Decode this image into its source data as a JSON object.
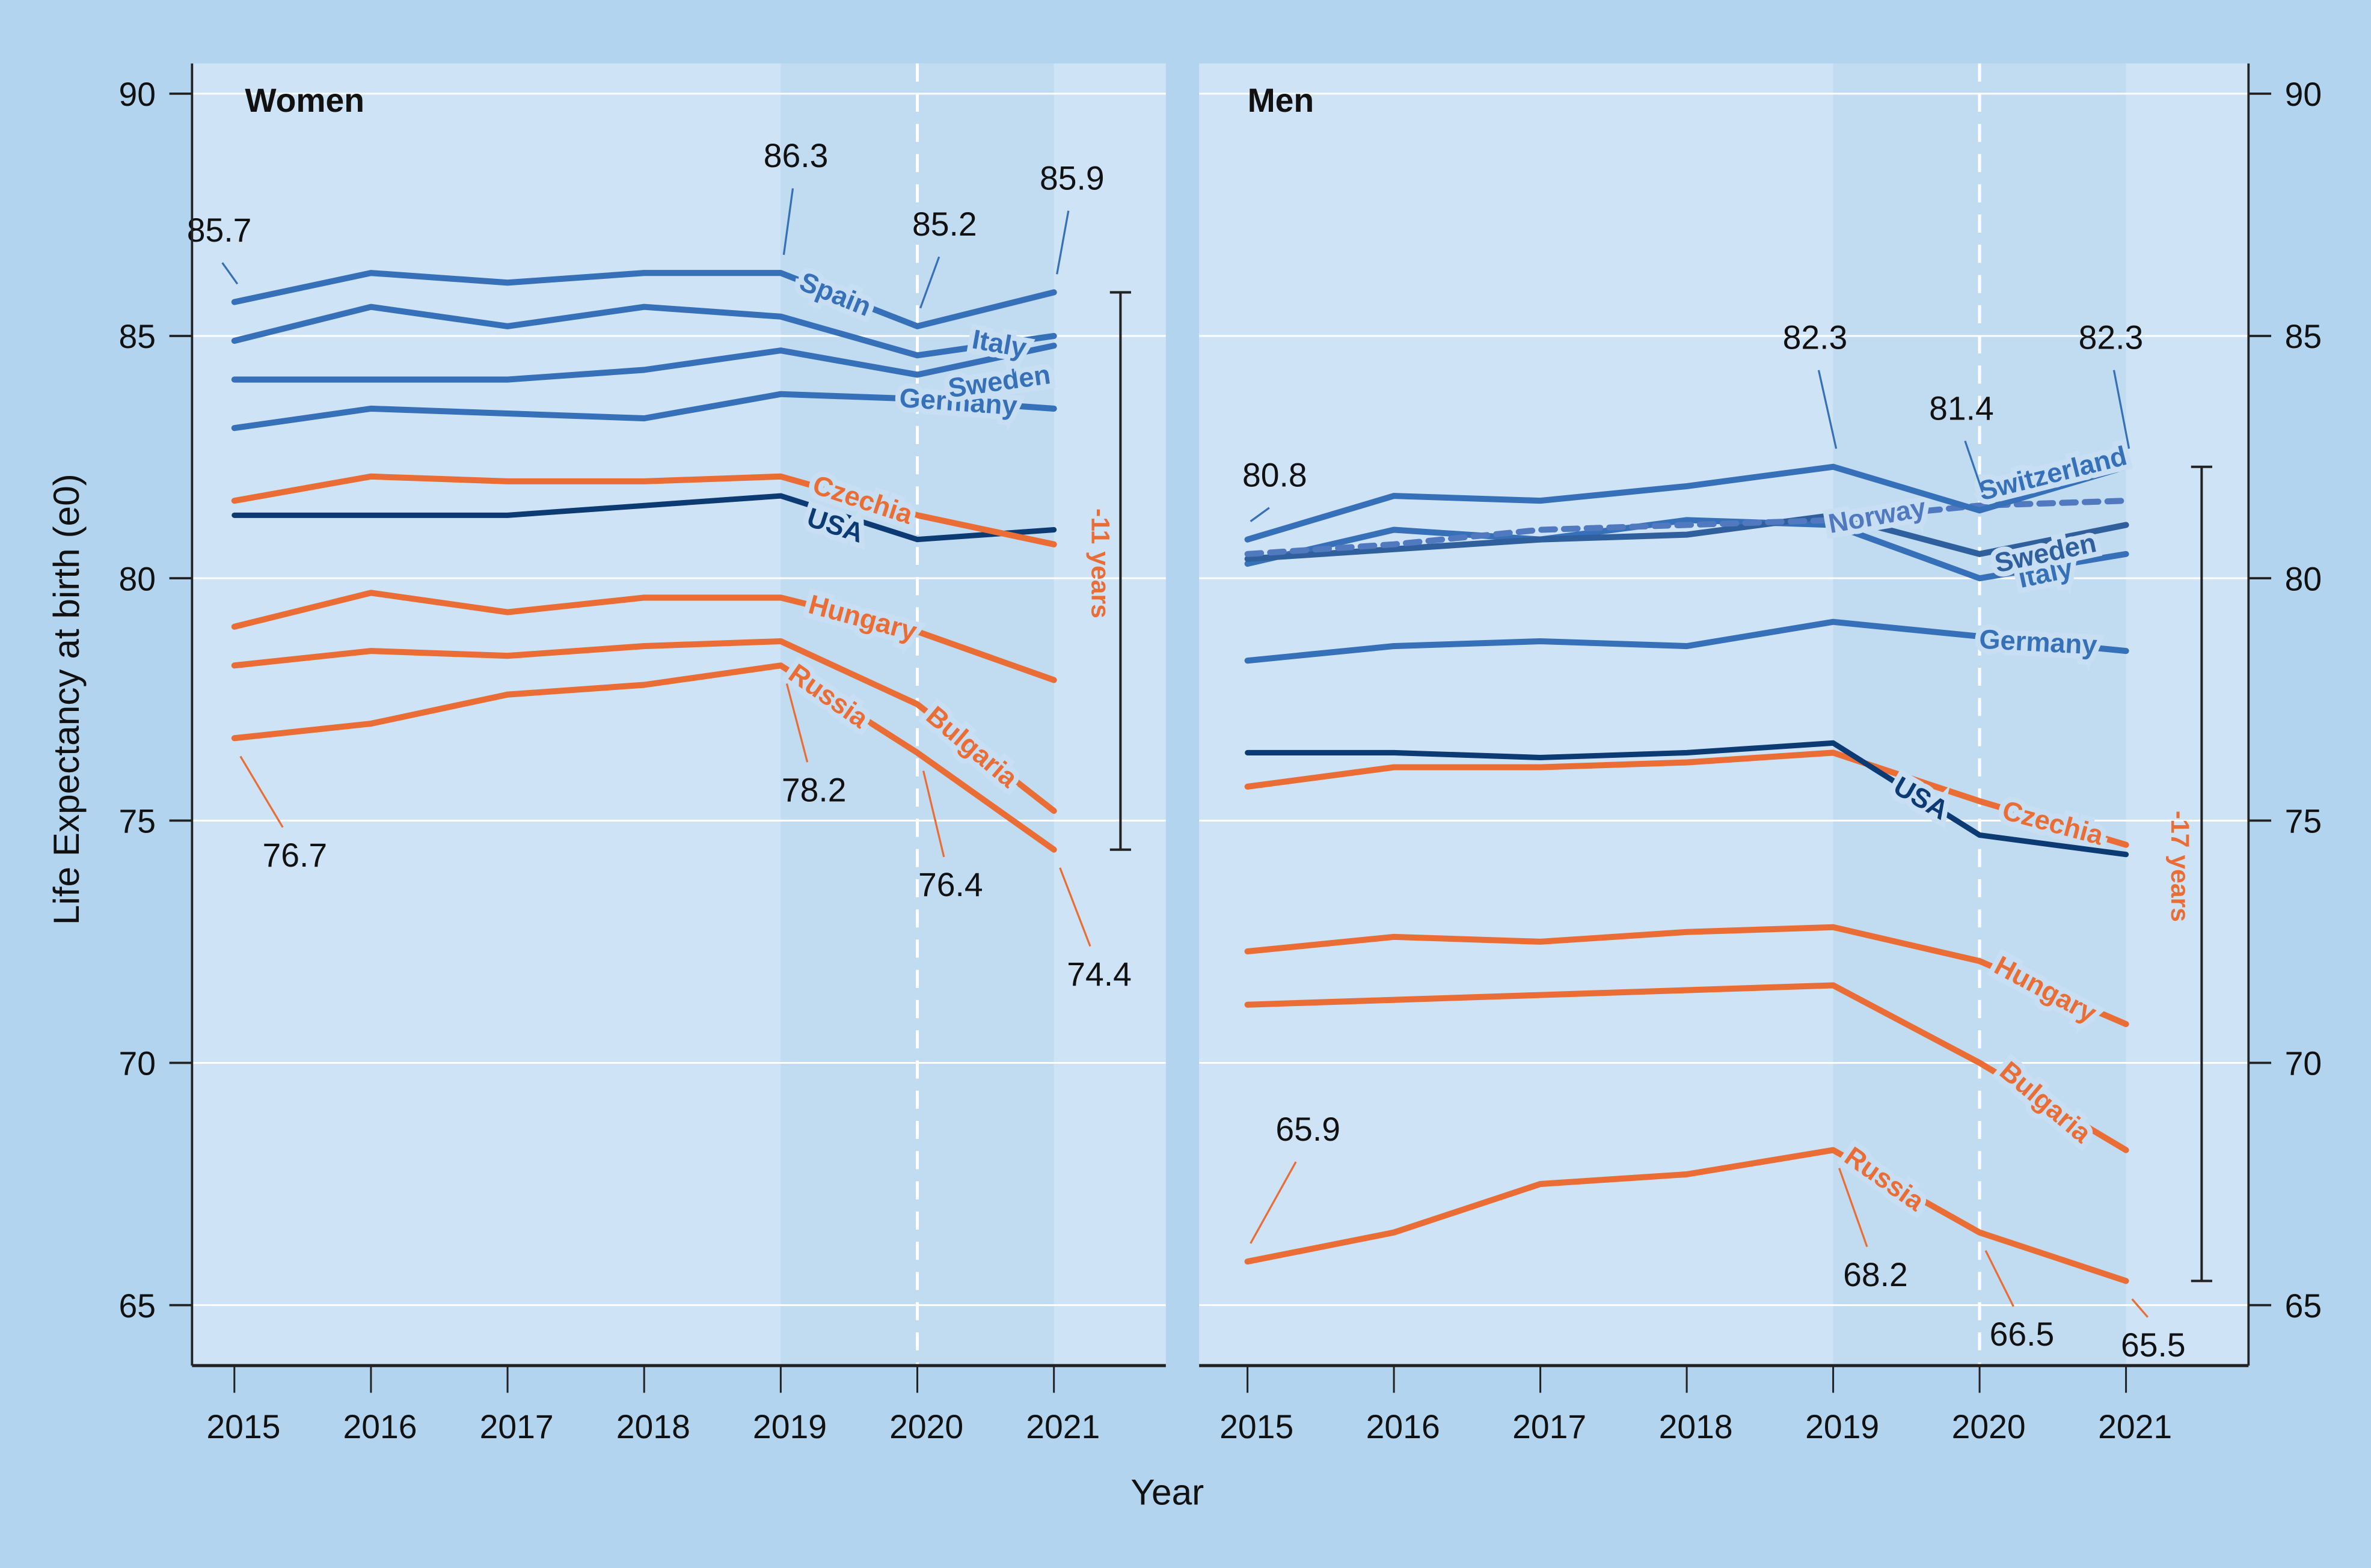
{
  "chart_data": {
    "type": "line",
    "ylabel": "Life Expectancy at birth (e0)",
    "xlabel": "Year",
    "ylim": [
      64,
      91
    ],
    "yticks": [
      65,
      70,
      75,
      80,
      85,
      90
    ],
    "x": [
      2015,
      2016,
      2017,
      2018,
      2019,
      2020,
      2021
    ],
    "grid": true,
    "shaded_years": [
      2019,
      2021
    ],
    "dashed_reference_year": 2020,
    "colors": {
      "western": "#3670b8",
      "usa": "#0c3a73",
      "eastern": "#e96d35",
      "sweden_men": "#2f5f9c",
      "norway": "#5079c0"
    },
    "panels": [
      {
        "title": "Women",
        "series": [
          {
            "name": "Spain",
            "group": "western",
            "values": [
              85.7,
              86.3,
              86.1,
              86.3,
              86.3,
              85.2,
              85.9
            ]
          },
          {
            "name": "Italy",
            "group": "western",
            "values": [
              84.9,
              85.6,
              85.2,
              85.6,
              85.4,
              84.6,
              85.0
            ]
          },
          {
            "name": "Sweden",
            "group": "western",
            "values": [
              84.1,
              84.1,
              84.1,
              84.3,
              84.7,
              84.2,
              84.8
            ]
          },
          {
            "name": "Germany",
            "group": "western",
            "values": [
              83.1,
              83.5,
              83.4,
              83.3,
              83.8,
              83.7,
              83.5
            ]
          },
          {
            "name": "Czechia",
            "group": "eastern",
            "values": [
              81.6,
              82.1,
              82.0,
              82.0,
              82.1,
              81.3,
              80.7
            ]
          },
          {
            "name": "USA",
            "group": "usa",
            "values": [
              81.3,
              81.3,
              81.3,
              81.5,
              81.7,
              80.8,
              81.0
            ]
          },
          {
            "name": "Hungary",
            "group": "eastern",
            "values": [
              79.0,
              79.7,
              79.3,
              79.6,
              79.6,
              78.9,
              77.9
            ]
          },
          {
            "name": "Bulgaria",
            "group": "eastern",
            "values": [
              78.2,
              78.5,
              78.4,
              78.6,
              78.7,
              77.4,
              75.2
            ]
          },
          {
            "name": "Russia",
            "group": "eastern",
            "values": [
              76.7,
              77.0,
              77.6,
              77.8,
              78.2,
              76.4,
              74.4
            ]
          }
        ],
        "annotations": [
          {
            "text": "85.7",
            "series": "Spain",
            "year": 2015
          },
          {
            "text": "86.3",
            "series": "Spain",
            "year": 2019
          },
          {
            "text": "85.2",
            "series": "Spain",
            "year": 2020
          },
          {
            "text": "85.9",
            "series": "Spain",
            "year": 2021
          },
          {
            "text": "76.7",
            "series": "Russia",
            "year": 2015
          },
          {
            "text": "78.2",
            "series": "Russia",
            "year": 2019
          },
          {
            "text": "76.4",
            "series": "Russia",
            "year": 2020
          },
          {
            "text": "74.4",
            "series": "Russia",
            "year": 2021
          }
        ],
        "range": {
          "label": "-11 years",
          "from": 85.9,
          "to": 74.4
        }
      },
      {
        "title": "Men",
        "series": [
          {
            "name": "Switzerland",
            "group": "western",
            "values": [
              80.8,
              81.7,
              81.6,
              81.9,
              82.3,
              81.4,
              82.3
            ]
          },
          {
            "name": "Norway",
            "group": "norway",
            "dashed": true,
            "values": [
              80.5,
              80.7,
              81.0,
              81.1,
              81.2,
              81.5,
              81.6
            ]
          },
          {
            "name": "Sweden",
            "group": "sweden_men",
            "values": [
              80.4,
              80.6,
              80.8,
              80.9,
              81.3,
              80.5,
              81.1
            ]
          },
          {
            "name": "Italy",
            "group": "western",
            "values": [
              80.3,
              81.0,
              80.8,
              81.2,
              81.1,
              80.0,
              80.5
            ]
          },
          {
            "name": "Germany",
            "group": "western",
            "values": [
              78.3,
              78.6,
              78.7,
              78.6,
              79.1,
              78.8,
              78.5
            ]
          },
          {
            "name": "USA",
            "group": "usa",
            "values": [
              76.4,
              76.4,
              76.3,
              76.4,
              76.6,
              74.7,
              74.3
            ]
          },
          {
            "name": "Czechia",
            "group": "eastern",
            "values": [
              75.7,
              76.1,
              76.1,
              76.2,
              76.4,
              75.4,
              74.5
            ]
          },
          {
            "name": "Hungary",
            "group": "eastern",
            "values": [
              72.3,
              72.6,
              72.5,
              72.7,
              72.8,
              72.1,
              70.8
            ]
          },
          {
            "name": "Bulgaria",
            "group": "eastern",
            "values": [
              71.2,
              71.3,
              71.4,
              71.5,
              71.6,
              70.0,
              68.2
            ]
          },
          {
            "name": "Russia",
            "group": "eastern",
            "values": [
              65.9,
              66.5,
              67.5,
              67.7,
              68.2,
              66.5,
              65.5
            ]
          }
        ],
        "annotations": [
          {
            "text": "80.8",
            "series": "Switzerland",
            "year": 2015
          },
          {
            "text": "82.3",
            "series": "Switzerland",
            "year": 2019
          },
          {
            "text": "81.4",
            "series": "Switzerland",
            "year": 2020
          },
          {
            "text": "82.3",
            "series": "Switzerland",
            "year": 2021
          },
          {
            "text": "65.9",
            "series": "Russia",
            "year": 2015
          },
          {
            "text": "68.2",
            "series": "Russia",
            "year": 2019
          },
          {
            "text": "66.5",
            "series": "Russia",
            "year": 2020
          },
          {
            "text": "65.5",
            "series": "Russia",
            "year": 2021
          }
        ],
        "range": {
          "label": "-17 years",
          "from": 82.3,
          "to": 65.5
        }
      }
    ]
  }
}
